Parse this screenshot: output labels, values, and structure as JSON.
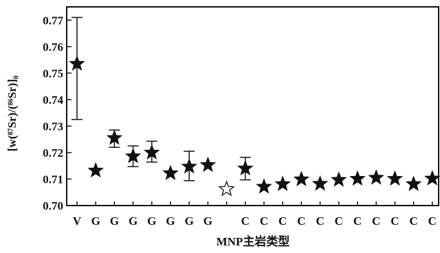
{
  "chart_data": {
    "type": "scatter",
    "ylabel": "[w(⁸⁷Sr)/(⁸⁶Sr)]₀",
    "xlabel": "MNP主岩类型",
    "ylim": [
      0.7,
      0.775
    ],
    "yticks": [
      0.7,
      0.71,
      0.72,
      0.73,
      0.74,
      0.75,
      0.76,
      0.77
    ],
    "ytick_labels": [
      "0.70",
      "0.71",
      "0.72",
      "0.73",
      "0.74",
      "0.75",
      "0.76",
      "0.77"
    ],
    "categories": [
      "V",
      "G",
      "G",
      "G",
      "G",
      "G",
      "G",
      "G",
      "",
      "C",
      "C",
      "C",
      "C",
      "C",
      "C",
      "C",
      "C",
      "C",
      "C",
      "C"
    ],
    "points": [
      {
        "x": 1,
        "y": 0.7535,
        "err_low": 0.7325,
        "err_high": 0.771,
        "marker": "filled-star"
      },
      {
        "x": 2,
        "y": 0.7132,
        "marker": "filled-star"
      },
      {
        "x": 3,
        "y": 0.7255,
        "err_low": 0.722,
        "err_high": 0.7285,
        "marker": "filled-star"
      },
      {
        "x": 4,
        "y": 0.7186,
        "err_low": 0.7147,
        "err_high": 0.7225,
        "marker": "filled-star"
      },
      {
        "x": 5,
        "y": 0.72,
        "err_low": 0.7164,
        "err_high": 0.7243,
        "marker": "filled-star"
      },
      {
        "x": 6,
        "y": 0.7122,
        "marker": "filled-star"
      },
      {
        "x": 7,
        "y": 0.7147,
        "err_low": 0.7094,
        "err_high": 0.7205,
        "marker": "filled-star"
      },
      {
        "x": 8,
        "y": 0.7153,
        "marker": "filled-star"
      },
      {
        "x": 9,
        "y": 0.7062,
        "marker": "open-star"
      },
      {
        "x": 10,
        "y": 0.714,
        "err_low": 0.7097,
        "err_high": 0.7182,
        "marker": "filled-star"
      },
      {
        "x": 11,
        "y": 0.7071,
        "marker": "filled-star"
      },
      {
        "x": 12,
        "y": 0.7081,
        "marker": "filled-star"
      },
      {
        "x": 13,
        "y": 0.7099,
        "marker": "filled-star"
      },
      {
        "x": 14,
        "y": 0.7082,
        "marker": "filled-star"
      },
      {
        "x": 15,
        "y": 0.7097,
        "marker": "filled-star"
      },
      {
        "x": 16,
        "y": 0.7101,
        "marker": "filled-star"
      },
      {
        "x": 17,
        "y": 0.7105,
        "marker": "filled-star"
      },
      {
        "x": 18,
        "y": 0.7101,
        "marker": "filled-star"
      },
      {
        "x": 19,
        "y": 0.7081,
        "marker": "filled-star"
      },
      {
        "x": 20,
        "y": 0.7102,
        "marker": "filled-star"
      }
    ],
    "marker_color": "#111111",
    "grid": false,
    "legend": "none"
  }
}
